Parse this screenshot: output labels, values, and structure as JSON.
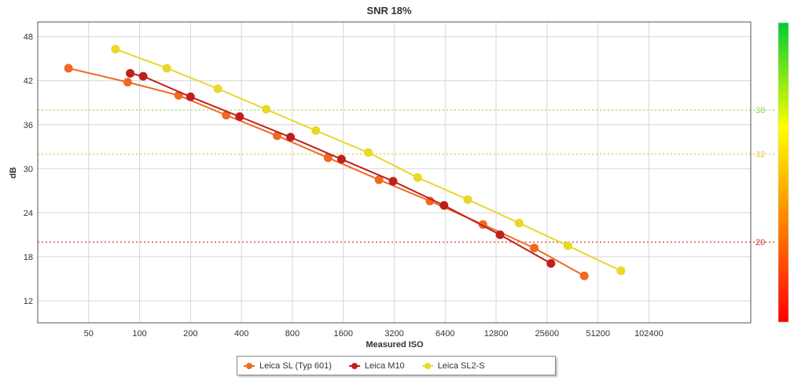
{
  "chart_data": {
    "type": "line",
    "title": "SNR 18%",
    "xlabel": "Measured ISO",
    "ylabel": "dB",
    "x_scale": "log2",
    "x_ticks": [
      50,
      100,
      200,
      400,
      800,
      1600,
      3200,
      6400,
      12800,
      25600,
      51200,
      102400
    ],
    "x_tick_labels": [
      "50",
      "100",
      "200",
      "400",
      "800",
      "1600",
      "3200",
      "6400",
      "12800",
      "25600",
      "51200",
      "102400"
    ],
    "xlim": [
      25,
      409600
    ],
    "ylim": [
      9,
      50
    ],
    "y_ticks": [
      12,
      18,
      24,
      30,
      36,
      42,
      48
    ],
    "y_tick_labels": [
      "12",
      "18",
      "24",
      "30",
      "36",
      "42",
      "48"
    ],
    "grid": true,
    "legend_position": "bottom-center",
    "reference_lines": [
      {
        "value": 38,
        "label": "38",
        "color": "#8fdc5a"
      },
      {
        "value": 32,
        "label": "32",
        "color": "#e8c440"
      },
      {
        "value": 20,
        "label": "20",
        "color": "#d93a2a"
      }
    ],
    "colorbar": {
      "min": 8,
      "max": 50,
      "colors": [
        "#ff0000",
        "#ff8800",
        "#ffff00",
        "#00cc33"
      ]
    },
    "series": [
      {
        "name": "Leica SL (Typ 601)",
        "color": "#ee6a22",
        "x": [
          38,
          85,
          170,
          325,
          650,
          1300,
          2600,
          5200,
          10700,
          21500,
          42500
        ],
        "y": [
          43.7,
          41.8,
          40.0,
          37.3,
          34.5,
          31.5,
          28.5,
          25.6,
          22.4,
          19.2,
          15.4
        ]
      },
      {
        "name": "Leica M10",
        "color": "#c0201c",
        "x": [
          88,
          105,
          200,
          390,
          780,
          1560,
          3150,
          6300,
          13500,
          27000
        ],
        "y": [
          43.0,
          42.6,
          39.8,
          37.1,
          34.3,
          31.3,
          28.3,
          25.0,
          21.0,
          17.1
        ]
      },
      {
        "name": "Leica SL2-S",
        "color": "#e8d82a",
        "x": [
          72,
          145,
          290,
          560,
          1100,
          2250,
          4400,
          8700,
          17500,
          34000,
          70000
        ],
        "y": [
          46.3,
          43.7,
          40.9,
          38.1,
          35.2,
          32.2,
          28.8,
          25.8,
          22.6,
          19.5,
          16.1
        ]
      }
    ]
  }
}
